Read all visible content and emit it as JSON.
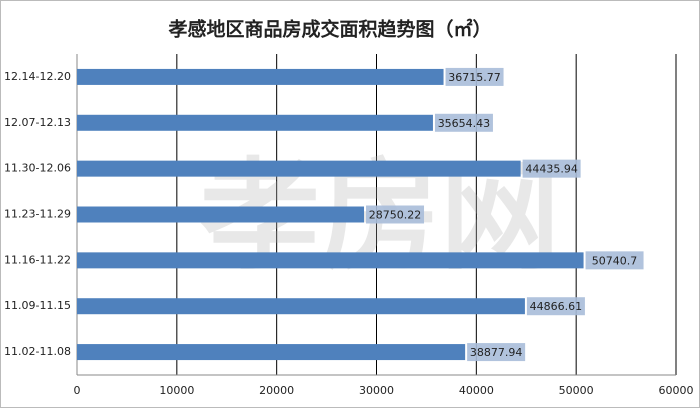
{
  "chart_data": {
    "type": "hbar",
    "title": "孝感地区商品房成交面积趋势图（㎡）",
    "watermark": "孝房网",
    "categories": [
      "12.14-12.20",
      "12.07-12.13",
      "11.30-12.06",
      "11.23-11.29",
      "11.16-11.22",
      "11.09-11.15",
      "11.02-11.08"
    ],
    "values": [
      36715.77,
      35654.43,
      44435.94,
      28750.22,
      50740.7,
      44866.61,
      38877.94
    ],
    "color": "#4f81bd",
    "xlim": [
      0,
      60000
    ],
    "xticks": [
      0,
      10000,
      20000,
      30000,
      40000,
      50000,
      60000
    ],
    "grid": true
  }
}
